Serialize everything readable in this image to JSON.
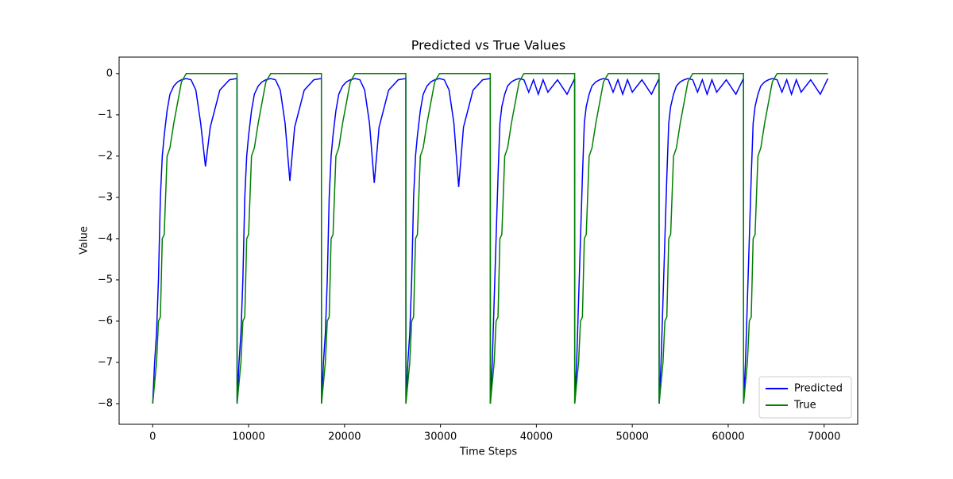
{
  "chart_data": {
    "type": "line",
    "title": "Predicted vs True Values",
    "x_label": "Time Steps",
    "y_label": "Value",
    "x": [
      0,
      200,
      400,
      600,
      800,
      1000,
      1200,
      1500,
      1800,
      2200,
      2600,
      3000,
      3500,
      4000,
      4500,
      5000,
      5500,
      6000,
      7000,
      8000,
      8790,
      8800,
      9000,
      9200,
      9400,
      9600,
      9800,
      10000,
      10300,
      10600,
      11000,
      11400,
      11800,
      12300,
      12800,
      13300,
      13800,
      14300,
      14800,
      15800,
      16800,
      17590,
      17600,
      17800,
      18000,
      18200,
      18400,
      18600,
      18800,
      19100,
      19400,
      19800,
      20200,
      20600,
      21100,
      21600,
      22100,
      22600,
      23100,
      23600,
      24600,
      25600,
      26390,
      26400,
      26600,
      26800,
      27000,
      27200,
      27400,
      27600,
      27900,
      28200,
      28600,
      29000,
      29400,
      29900,
      30400,
      30900,
      31400,
      31900,
      32400,
      33400,
      34400,
      35190,
      35200,
      35400,
      35600,
      35800,
      36000,
      36200,
      36400,
      36700,
      37000,
      37400,
      37800,
      38200,
      38700,
      39200,
      39700,
      40200,
      40700,
      41200,
      42200,
      43200,
      43990,
      44000,
      44200,
      44400,
      44600,
      44800,
      45000,
      45200,
      45500,
      45800,
      46200,
      46600,
      47000,
      47500,
      48000,
      48500,
      49000,
      49500,
      50000,
      51000,
      52000,
      52790,
      52800,
      53000,
      53200,
      53400,
      53600,
      53800,
      54000,
      54300,
      54600,
      55000,
      55400,
      55800,
      56300,
      56800,
      57300,
      57800,
      58300,
      58800,
      59800,
      60800,
      61590,
      61600,
      61800,
      62000,
      62200,
      62400,
      62600,
      62800,
      63100,
      63400,
      63800,
      64200,
      64600,
      65100,
      65600,
      66100,
      66600,
      67100,
      67600,
      68600,
      69600,
      70390
    ],
    "series": [
      {
        "name": "Predicted",
        "color": "#0000ff",
        "values": [
          -8,
          -7,
          -6.3,
          -5,
          -3,
          -2,
          -1.5,
          -0.9,
          -0.5,
          -0.3,
          -0.2,
          -0.15,
          -0.12,
          -0.15,
          -0.4,
          -1.2,
          -2.25,
          -1.3,
          -0.4,
          -0.15,
          -0.12,
          -8,
          -7,
          -6.3,
          -5,
          -3,
          -2,
          -1.5,
          -0.9,
          -0.5,
          -0.3,
          -0.2,
          -0.15,
          -0.12,
          -0.15,
          -0.4,
          -1.2,
          -2.6,
          -1.3,
          -0.4,
          -0.15,
          -0.12,
          -8,
          -7,
          -6.3,
          -5,
          -3,
          -2,
          -1.5,
          -0.9,
          -0.5,
          -0.3,
          -0.2,
          -0.15,
          -0.12,
          -0.15,
          -0.4,
          -1.2,
          -2.65,
          -1.3,
          -0.4,
          -0.15,
          -0.12,
          -8,
          -7,
          -6.3,
          -5,
          -3,
          -2,
          -1.5,
          -0.9,
          -0.5,
          -0.3,
          -0.2,
          -0.15,
          -0.12,
          -0.15,
          -0.4,
          -1.2,
          -2.75,
          -1.3,
          -0.4,
          -0.15,
          -0.12,
          -8,
          -7,
          -5.5,
          -4,
          -2.5,
          -1.2,
          -0.8,
          -0.5,
          -0.3,
          -0.2,
          -0.15,
          -0.12,
          -0.15,
          -0.45,
          -0.15,
          -0.5,
          -0.15,
          -0.45,
          -0.15,
          -0.5,
          -0.12,
          -8,
          -7,
          -5.5,
          -4,
          -2.5,
          -1.2,
          -0.8,
          -0.5,
          -0.3,
          -0.2,
          -0.15,
          -0.12,
          -0.15,
          -0.45,
          -0.15,
          -0.5,
          -0.15,
          -0.45,
          -0.15,
          -0.5,
          -0.12,
          -8,
          -7,
          -5.5,
          -4,
          -2.5,
          -1.2,
          -0.8,
          -0.5,
          -0.3,
          -0.2,
          -0.15,
          -0.12,
          -0.15,
          -0.45,
          -0.15,
          -0.5,
          -0.15,
          -0.45,
          -0.15,
          -0.5,
          -0.12,
          -8,
          -7,
          -5.5,
          -4,
          -2.5,
          -1.2,
          -0.8,
          -0.5,
          -0.3,
          -0.2,
          -0.15,
          -0.12,
          -0.15,
          -0.45,
          -0.15,
          -0.5,
          -0.15,
          -0.45,
          -0.15,
          -0.5,
          -0.12
        ]
      },
      {
        "name": "True",
        "color": "#008000",
        "values": [
          -8,
          -7.5,
          -7,
          -6,
          -5.9,
          -4,
          -3.9,
          -2,
          -1.8,
          -1.2,
          -0.7,
          -0.2,
          0,
          0,
          0,
          0,
          0,
          0,
          0,
          0,
          0,
          -8,
          -7.5,
          -7,
          -6,
          -5.9,
          -4,
          -3.9,
          -2,
          -1.8,
          -1.2,
          -0.7,
          -0.2,
          0,
          0,
          0,
          0,
          0,
          0,
          0,
          0,
          0,
          -8,
          -7.5,
          -7,
          -6,
          -5.9,
          -4,
          -3.9,
          -2,
          -1.8,
          -1.2,
          -0.7,
          -0.2,
          0,
          0,
          0,
          0,
          0,
          0,
          0,
          0,
          0,
          -8,
          -7.5,
          -7,
          -6,
          -5.9,
          -4,
          -3.9,
          -2,
          -1.8,
          -1.2,
          -0.7,
          -0.2,
          0,
          0,
          0,
          0,
          0,
          0,
          0,
          0,
          0,
          -8,
          -7.5,
          -7,
          -6,
          -5.9,
          -4,
          -3.9,
          -2,
          -1.8,
          -1.2,
          -0.7,
          -0.2,
          0,
          0,
          0,
          0,
          0,
          0,
          0,
          0,
          0,
          -8,
          -7.5,
          -7,
          -6,
          -5.9,
          -4,
          -3.9,
          -2,
          -1.8,
          -1.2,
          -0.7,
          -0.2,
          0,
          0,
          0,
          0,
          0,
          0,
          0,
          0,
          0,
          -8,
          -7.5,
          -7,
          -6,
          -5.9,
          -4,
          -3.9,
          -2,
          -1.8,
          -1.2,
          -0.7,
          -0.2,
          0,
          0,
          0,
          0,
          0,
          0,
          0,
          0,
          0,
          -8,
          -7.5,
          -7,
          -6,
          -5.9,
          -4,
          -3.9,
          -2,
          -1.8,
          -1.2,
          -0.7,
          -0.2,
          0,
          0,
          0,
          0,
          0,
          0,
          0,
          0,
          0
        ]
      }
    ],
    "xlim": [
      -3500,
      73500
    ],
    "xticks": [
      0,
      10000,
      20000,
      30000,
      40000,
      50000,
      60000,
      70000
    ],
    "ylim": [
      -8.5,
      0.4
    ],
    "yticks": [
      {
        "value": -8,
        "label": "−8"
      },
      {
        "value": -7,
        "label": "−7"
      },
      {
        "value": -6,
        "label": "−6"
      },
      {
        "value": -5,
        "label": "−5"
      },
      {
        "value": -4,
        "label": "−4"
      },
      {
        "value": -3,
        "label": "−3"
      },
      {
        "value": -2,
        "label": "−2"
      },
      {
        "value": -1,
        "label": "−1"
      },
      0
    ],
    "grid": false,
    "legend_position": "lower-right"
  }
}
